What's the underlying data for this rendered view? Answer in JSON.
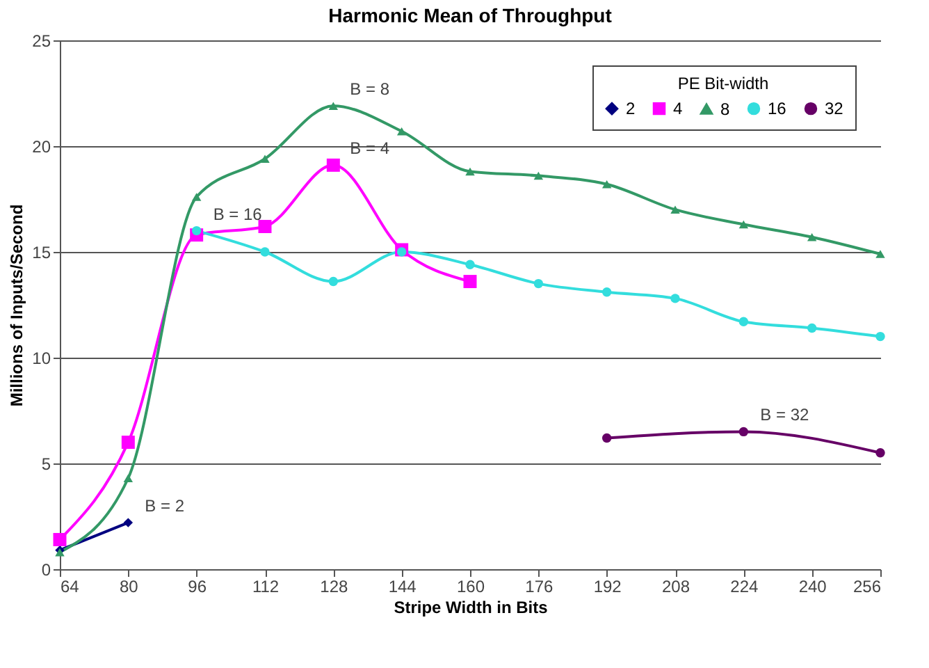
{
  "chart_data": {
    "type": "line",
    "title": "Harmonic Mean of Throughput",
    "xlabel": "Stripe Width in Bits",
    "ylabel": "Millions of Inputs/Second",
    "legend_title": "PE Bit-width",
    "series": [
      {
        "name": "2",
        "color": "#000080",
        "marker": "diamond",
        "x": [
          64,
          80
        ],
        "values": [
          0.9,
          2.2
        ]
      },
      {
        "name": "4",
        "color": "#ff00ff",
        "marker": "square",
        "x": [
          64,
          80,
          96,
          112,
          128,
          144,
          160
        ],
        "values": [
          1.4,
          6.0,
          15.8,
          16.2,
          19.1,
          15.1,
          13.6
        ]
      },
      {
        "name": "8",
        "color": "#339966",
        "marker": "triangle",
        "x": [
          64,
          80,
          96,
          112,
          128,
          144,
          160,
          176,
          192,
          208,
          224,
          240,
          256
        ],
        "values": [
          0.8,
          4.3,
          17.6,
          19.4,
          21.9,
          20.7,
          18.8,
          18.6,
          18.2,
          17.0,
          16.3,
          15.7,
          14.9
        ]
      },
      {
        "name": "16",
        "color": "#33dddd",
        "marker": "circle",
        "x": [
          96,
          112,
          128,
          144,
          160,
          176,
          192,
          208,
          224,
          240,
          256
        ],
        "values": [
          16.0,
          15.0,
          13.6,
          15.0,
          14.4,
          13.5,
          13.1,
          12.8,
          11.7,
          11.4,
          11.0
        ]
      },
      {
        "name": "32",
        "color": "#660066",
        "marker": "circle",
        "x": [
          192,
          224,
          256
        ],
        "values": [
          6.2,
          6.5,
          5.5
        ]
      }
    ],
    "annotations": [
      "B = 2",
      "B = 4",
      "B = 8",
      "B = 16",
      "B = 32"
    ],
    "xlim": [
      64,
      256
    ],
    "xticks": [
      64,
      80,
      96,
      112,
      128,
      144,
      160,
      176,
      192,
      208,
      224,
      240,
      256
    ],
    "ylim": [
      0,
      25
    ],
    "yticks": [
      0,
      5,
      10,
      15,
      20,
      25
    ],
    "grid": "y",
    "legend": "top right",
    "line_style": "solid"
  }
}
